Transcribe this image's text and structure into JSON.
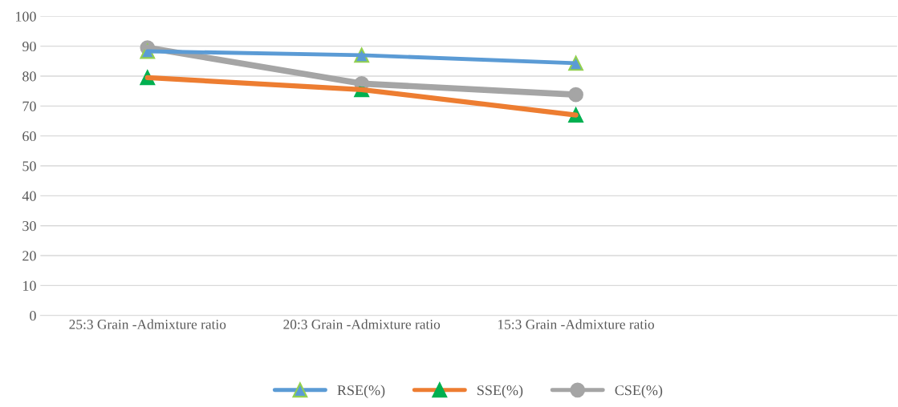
{
  "chart_data": {
    "type": "line",
    "categories": [
      "25:3 Grain -Admixture ratio",
      "20:3 Grain -Admixture ratio",
      "15:3 Grain -Admixture ratio",
      null
    ],
    "series": [
      {
        "name": "RSE(%)",
        "color": "#5b9bd5",
        "marker": "triangle",
        "colors": [
          "#5b9bd5",
          "#5b9bd5",
          "#5b9bd5",
          "#5b9bd5"
        ],
        "values": [
          88.3,
          87,
          84.3,
          null
        ]
      },
      {
        "name": "SSE(%)",
        "color": "#ed7d31",
        "marker": "triangle",
        "colors": [
          "#00b050",
          "#00b050",
          "#00b050",
          "#00b050"
        ],
        "values": [
          79.5,
          75.5,
          67,
          null
        ]
      },
      {
        "name": "CSE(%)",
        "color": "#a5a5a5",
        "marker": "circle",
        "colors": [
          "#a5a5a5",
          "#a5a5a5",
          "#a5a5a5",
          "#a5a5a5"
        ],
        "values": [
          89.5,
          77.5,
          73.8,
          null
        ]
      }
    ],
    "ylim": [
      0,
      100
    ],
    "yticks": [
      0,
      10,
      20,
      30,
      40,
      50,
      60,
      70,
      80,
      90,
      100
    ],
    "grid": "y",
    "legend": "bottom"
  }
}
